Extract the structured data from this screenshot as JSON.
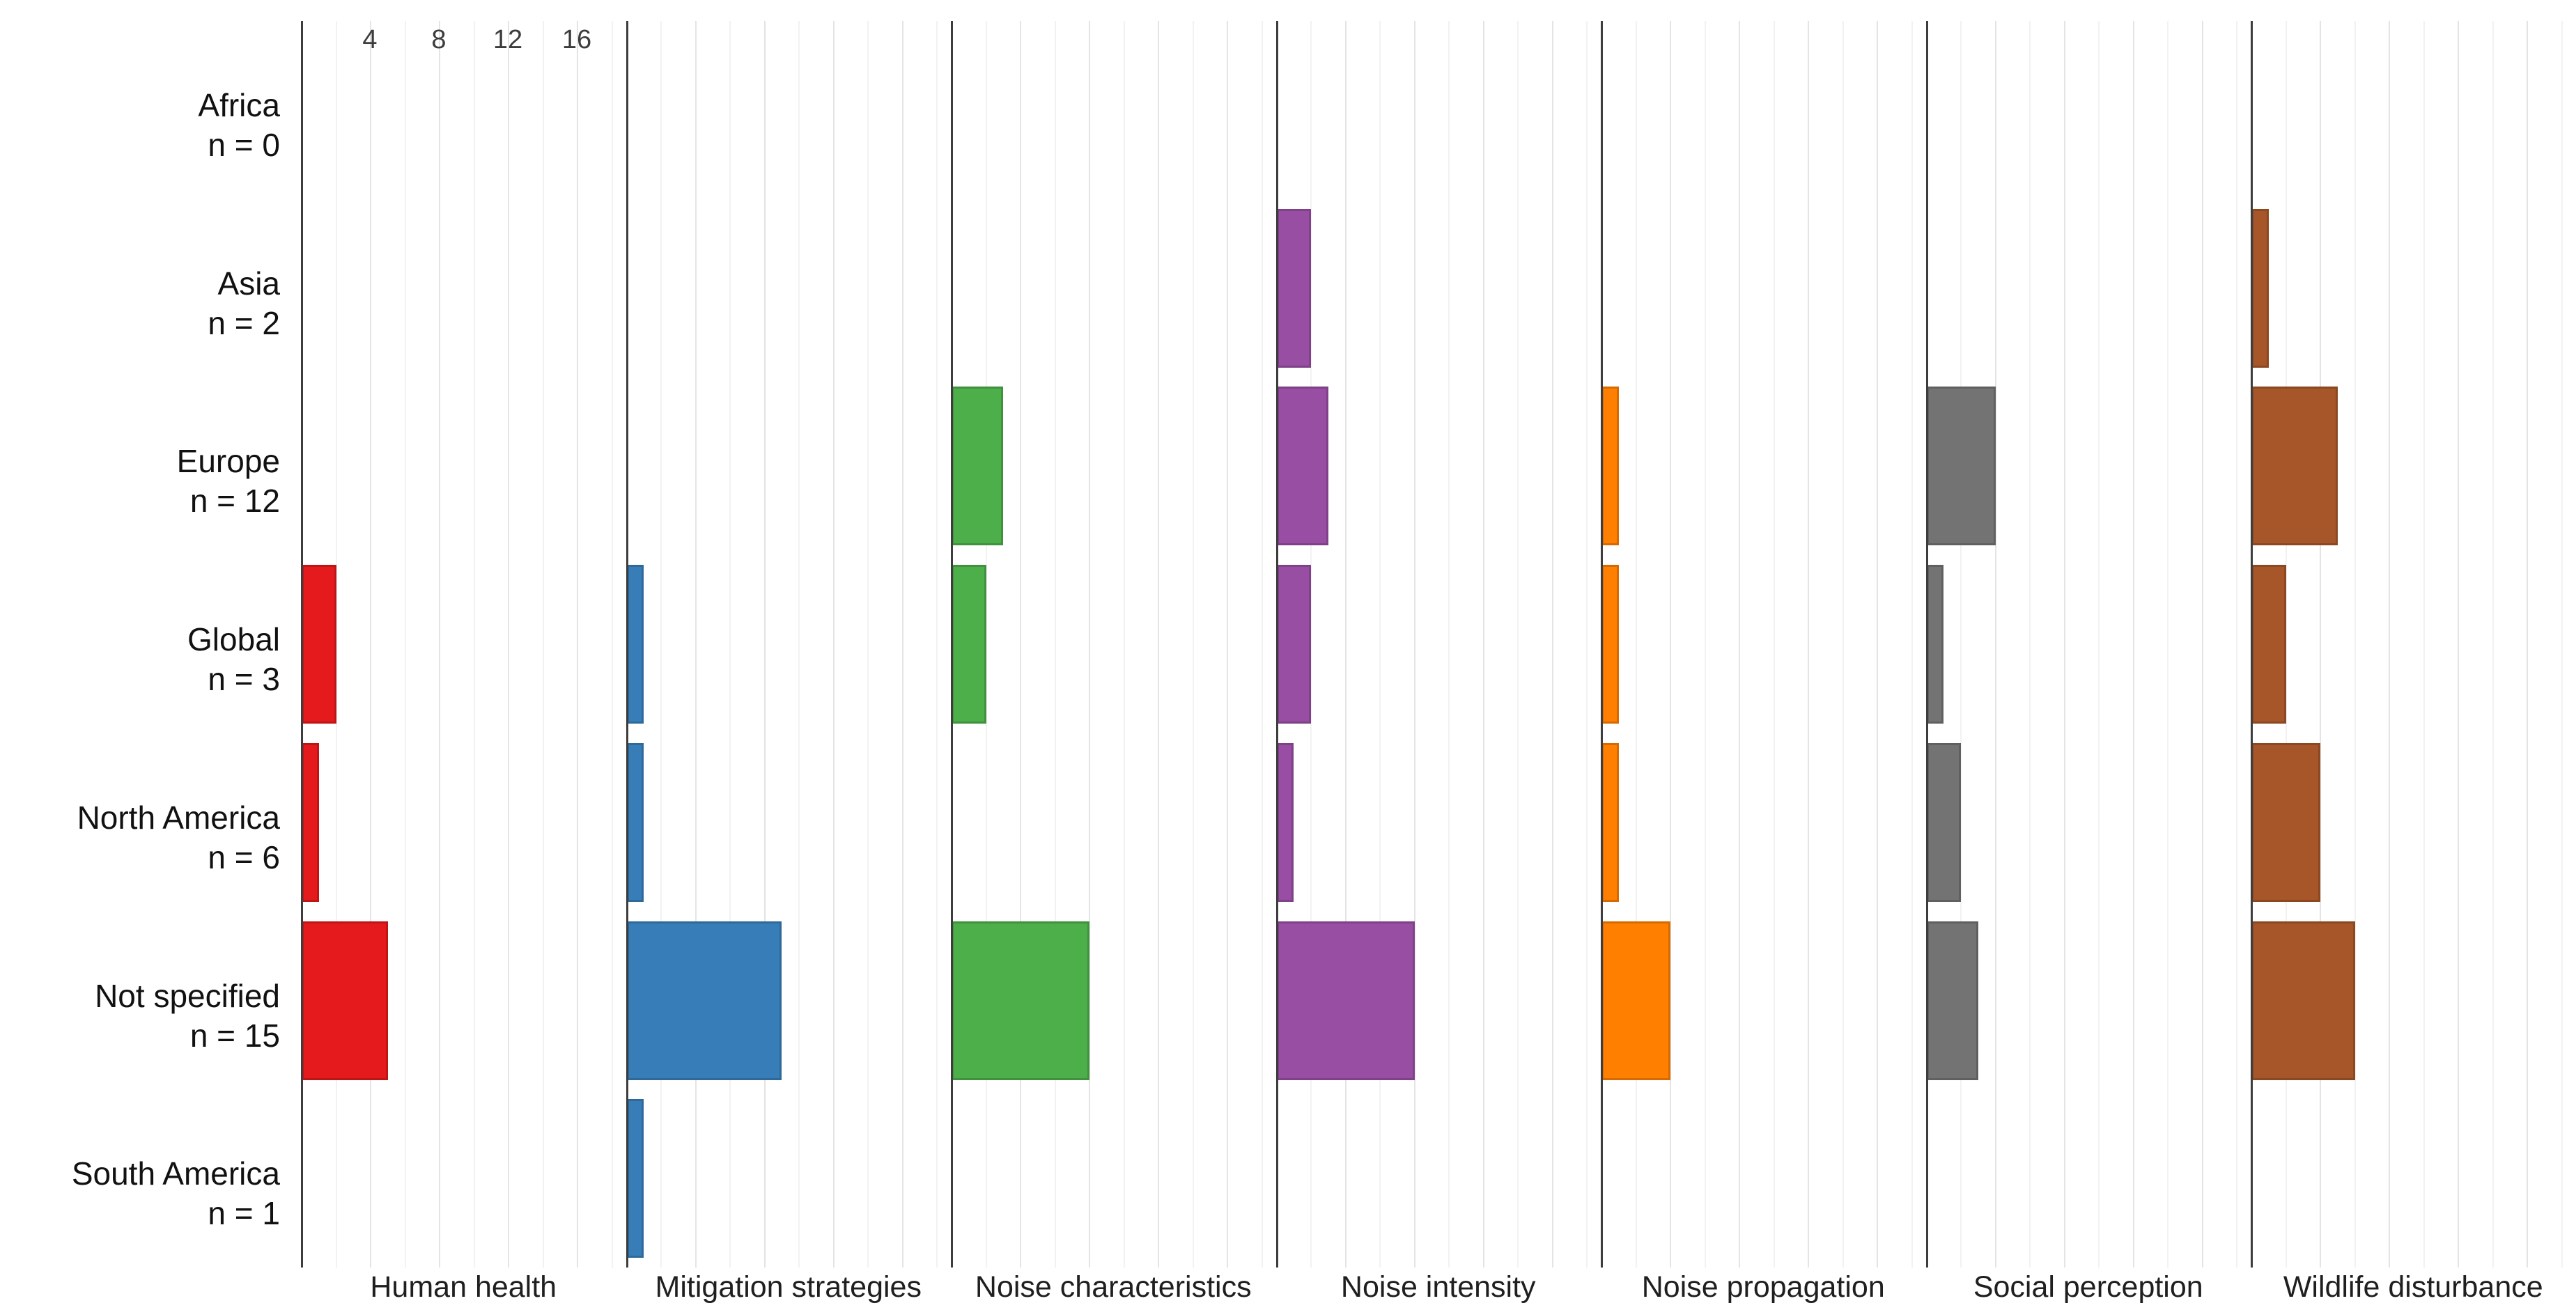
{
  "figure": {
    "background_color": "#ffffff",
    "text_color": "#111111"
  },
  "chart_data": {
    "type": "bar",
    "orientation": "horizontal",
    "title": "",
    "xlabel": "",
    "ylabel": "",
    "grid": "on",
    "legend": "none",
    "x_ticks": [
      4,
      8,
      12,
      16
    ],
    "x_minor_ticks": [
      2,
      6,
      10,
      14,
      18
    ],
    "x_range": [
      0,
      18.8
    ],
    "tick_labels_shown_on": "first facet only, top of panel",
    "categories": [
      "Africa",
      "Asia",
      "Europe",
      "Global",
      "North America",
      "Not specified",
      "South America"
    ],
    "rows": [
      {
        "region": "Africa",
        "n_label": "n = 0",
        "n": 0
      },
      {
        "region": "Asia",
        "n_label": "n = 2",
        "n": 2
      },
      {
        "region": "Europe",
        "n_label": "n = 12",
        "n": 12
      },
      {
        "region": "Global",
        "n_label": "n = 3",
        "n": 3
      },
      {
        "region": "North America",
        "n_label": "n = 6",
        "n": 6
      },
      {
        "region": "Not specified",
        "n_label": "n = 15",
        "n": 15
      },
      {
        "region": "South America",
        "n_label": "n = 1",
        "n": 1
      }
    ],
    "series": [
      {
        "name": "Human health",
        "color": "#e41a1c",
        "values": [
          0,
          0,
          0,
          2,
          1,
          5,
          0
        ]
      },
      {
        "name": "Mitigation strategies",
        "color": "#377eb8",
        "values": [
          0,
          0,
          0,
          1,
          1,
          9,
          1
        ]
      },
      {
        "name": "Noise characteristics",
        "color": "#4daf4a",
        "values": [
          0,
          0,
          3,
          2,
          0,
          8,
          0
        ]
      },
      {
        "name": "Noise intensity",
        "color": "#984ea3",
        "values": [
          0,
          2,
          3,
          2,
          1,
          8,
          0
        ]
      },
      {
        "name": "Noise propagation",
        "color": "#ff7f00",
        "values": [
          0,
          0,
          1,
          1,
          1,
          4,
          0
        ]
      },
      {
        "name": "Social perception",
        "color": "#737373",
        "values": [
          0,
          0,
          4,
          1,
          2,
          3,
          0
        ]
      },
      {
        "name": "Wildlife disturbance",
        "color": "#a65628",
        "values": [
          0,
          1,
          5,
          2,
          4,
          6,
          0
        ]
      }
    ],
    "axis_colors": {
      "axis_line": "#3d3d3d",
      "major_grid": "#e4e4e4",
      "minor_grid": "#f2f2f2",
      "tick_text": "#3c3c3c"
    }
  }
}
